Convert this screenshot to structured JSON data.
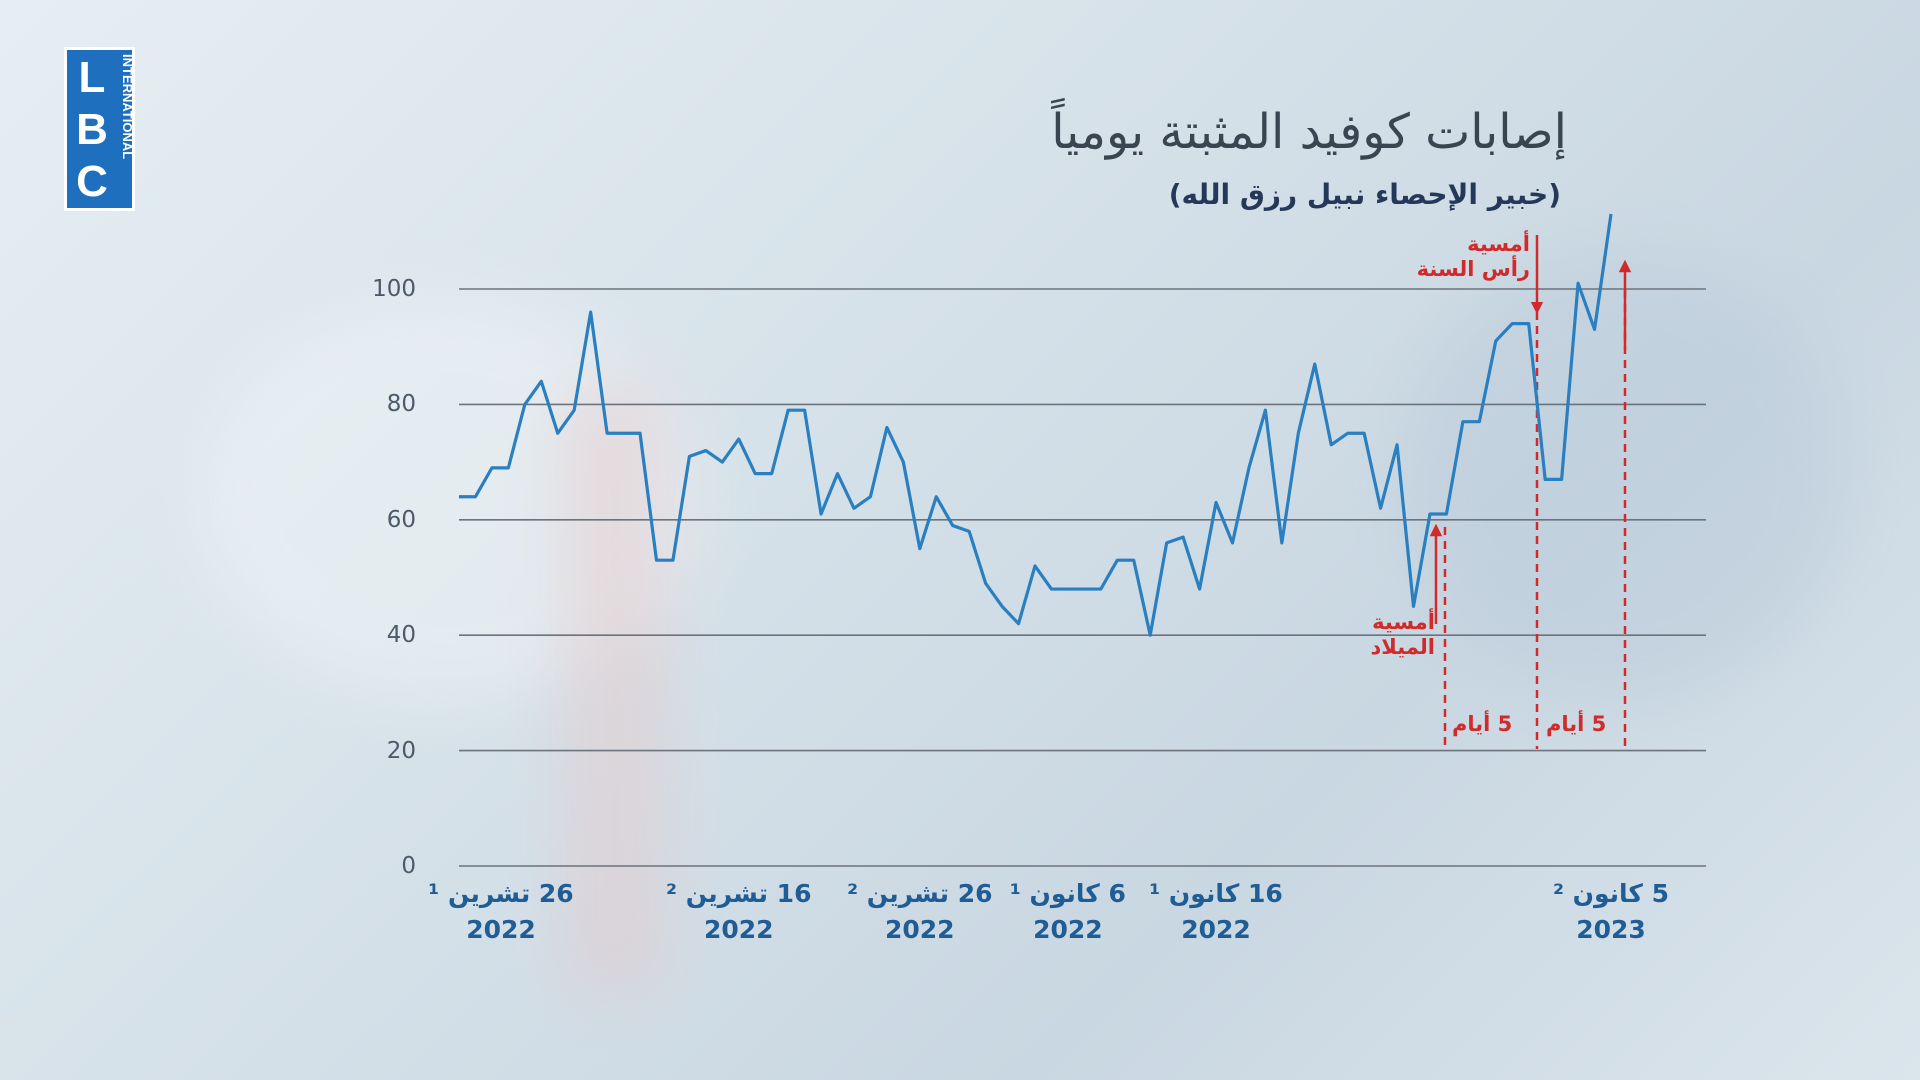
{
  "logo": {
    "letters": "LBC",
    "sub": "INTERNATIONAL"
  },
  "chart_data": {
    "type": "line",
    "title": "إصابات كوفيد المثبتة يومياً",
    "subtitle": "(خبير الإحصاء نبيل رزق الله)",
    "categories": [
      "26 تشرين ¹\n2022",
      null,
      null,
      null,
      null,
      null,
      null,
      null,
      null,
      null,
      null,
      null,
      null,
      null,
      null,
      null,
      null,
      "16 تشرين ²\n2022",
      null,
      null,
      null,
      null,
      null,
      null,
      null,
      null,
      null,
      null,
      "26 تشرين ²\n2022",
      null,
      null,
      null,
      null,
      null,
      null,
      null,
      null,
      "6 كانون ¹\n2022",
      null,
      null,
      null,
      null,
      null,
      null,
      null,
      null,
      "16 كانون ¹\n2022",
      null,
      null,
      null,
      null,
      null,
      null,
      null,
      null,
      null,
      null,
      null,
      null,
      null,
      null,
      null,
      null,
      null,
      null,
      null,
      null,
      null,
      null,
      null,
      "5 كانون ²\n2023"
    ],
    "series": [
      {
        "name": "إصابات كوفيد",
        "color": "#2a7fc0",
        "values": [
          64,
          64,
          69,
          69,
          80,
          84,
          75,
          79,
          96,
          75,
          75,
          75,
          53,
          53,
          71,
          72,
          70,
          74,
          68,
          68,
          79,
          79,
          61,
          68,
          62,
          64,
          76,
          70,
          55,
          64,
          59,
          58,
          49,
          45,
          42,
          52,
          48,
          48,
          48,
          48,
          53,
          53,
          40,
          56,
          57,
          48,
          63,
          56,
          69,
          79,
          56,
          75,
          87,
          73,
          75,
          75,
          62,
          73,
          45,
          61,
          61,
          77,
          77,
          91,
          94,
          94,
          67,
          67,
          101,
          93,
          113
        ]
      }
    ],
    "ylim": [
      0,
      100
    ],
    "yticks": [
      0,
      20,
      40,
      60,
      80,
      100
    ],
    "grid": true,
    "annotations": [
      "أمسية\nرأس السنة",
      "أمسية\nالميلاد",
      "5 أيام",
      "5 أيام"
    ]
  }
}
